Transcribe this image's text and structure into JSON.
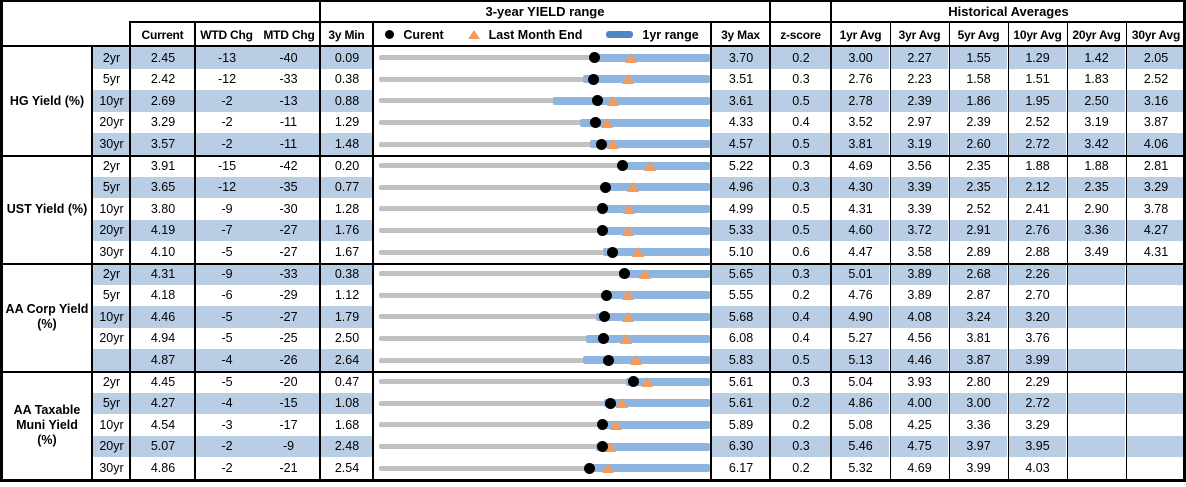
{
  "table": {
    "range_title": "3-year YIELD range",
    "historical_title": "Historical Averages",
    "columns": {
      "current": "Current",
      "wtd": "WTD Chg",
      "mtd": "MTD Chg",
      "min3y": "3y Min",
      "max3y": "3y Max",
      "zscore": "z-score",
      "averages": [
        "1yr Avg",
        "3yr Avg",
        "5yr Avg",
        "10yr Avg",
        "20yr Avg",
        "30yr Avg"
      ]
    },
    "legend": {
      "current_label": "Curent",
      "last_month_label": "Last Month End",
      "range_label": "1yr range"
    }
  },
  "colors": {
    "row_shade": "#B9CDE5",
    "bar_blue": "#8EB4E0",
    "legend_bar_blue": "#4E86C6",
    "track_gray": "#C1C1C1",
    "marker_orange": "#F49B5B",
    "marker_black": "#000000"
  },
  "chart_data": {
    "type": "table",
    "title": "3-year YIELD range with current, last-month-end and 1yr-range markers",
    "note": "Each row renders a bullet chart spanning 3y Min to 3y Max; dot = Current, triangle = last month end (Current - MTD Chg/100), blue bar = 1yr range ending at 3y Max; range_1yr_lo_frac is the estimated left edge of the 1yr range bar as a fraction of the 3y span.",
    "groups": [
      {
        "label": "HG Yield (%)",
        "rows": [
          {
            "tenor": "2yr",
            "current": 2.45,
            "wtd_chg": -13,
            "mtd_chg": -40,
            "min_3y": 0.09,
            "max_3y": 3.7,
            "z_score": 0.2,
            "averages": [
              3.0,
              2.27,
              1.55,
              1.29,
              1.42,
              2.05
            ],
            "range_1yr_lo_frac": 0.65
          },
          {
            "tenor": "5yr",
            "current": 2.42,
            "wtd_chg": -12,
            "mtd_chg": -33,
            "min_3y": 0.38,
            "max_3y": 3.51,
            "z_score": 0.3,
            "averages": [
              2.76,
              2.23,
              1.58,
              1.51,
              1.83,
              2.52
            ],
            "range_1yr_lo_frac": 0.62
          },
          {
            "tenor": "10yr",
            "current": 2.69,
            "wtd_chg": -2,
            "mtd_chg": -13,
            "min_3y": 0.88,
            "max_3y": 3.61,
            "z_score": 0.5,
            "averages": [
              2.78,
              2.39,
              1.86,
              1.95,
              2.5,
              3.16
            ],
            "range_1yr_lo_frac": 0.53
          },
          {
            "tenor": "20yr",
            "current": 3.29,
            "wtd_chg": -2,
            "mtd_chg": -11,
            "min_3y": 1.29,
            "max_3y": 4.33,
            "z_score": 0.4,
            "averages": [
              3.52,
              2.97,
              2.39,
              2.52,
              3.19,
              3.87
            ],
            "range_1yr_lo_frac": 0.61
          },
          {
            "tenor": "30yr",
            "current": 3.57,
            "wtd_chg": -2,
            "mtd_chg": -11,
            "min_3y": 1.48,
            "max_3y": 4.57,
            "z_score": 0.5,
            "averages": [
              3.81,
              3.19,
              2.6,
              2.72,
              3.42,
              4.06
            ],
            "range_1yr_lo_frac": 0.64
          }
        ]
      },
      {
        "label": "UST Yield (%)",
        "rows": [
          {
            "tenor": "2yr",
            "current": 3.91,
            "wtd_chg": -15,
            "mtd_chg": -42,
            "min_3y": 0.2,
            "max_3y": 5.22,
            "z_score": 0.3,
            "averages": [
              4.69,
              3.56,
              2.35,
              1.88,
              1.88,
              2.81
            ],
            "range_1yr_lo_frac": 0.73
          },
          {
            "tenor": "5yr",
            "current": 3.65,
            "wtd_chg": -12,
            "mtd_chg": -35,
            "min_3y": 0.77,
            "max_3y": 4.96,
            "z_score": 0.3,
            "averages": [
              4.3,
              3.39,
              2.35,
              2.12,
              2.35,
              3.29
            ],
            "range_1yr_lo_frac": 0.69
          },
          {
            "tenor": "10yr",
            "current": 3.8,
            "wtd_chg": -9,
            "mtd_chg": -30,
            "min_3y": 1.28,
            "max_3y": 4.99,
            "z_score": 0.5,
            "averages": [
              4.31,
              3.39,
              2.52,
              2.41,
              2.9,
              3.78
            ],
            "range_1yr_lo_frac": 0.69
          },
          {
            "tenor": "20yr",
            "current": 4.19,
            "wtd_chg": -7,
            "mtd_chg": -27,
            "min_3y": 1.76,
            "max_3y": 5.33,
            "z_score": 0.5,
            "averages": [
              4.6,
              3.72,
              2.91,
              2.76,
              3.36,
              4.27
            ],
            "range_1yr_lo_frac": 0.67
          },
          {
            "tenor": "30yr",
            "current": 4.1,
            "wtd_chg": -5,
            "mtd_chg": -27,
            "min_3y": 1.67,
            "max_3y": 5.1,
            "z_score": 0.6,
            "averages": [
              4.47,
              3.58,
              2.89,
              2.88,
              3.49,
              4.31
            ],
            "range_1yr_lo_frac": 0.68
          }
        ]
      },
      {
        "label": "AA Corp Yield (%)",
        "rows": [
          {
            "tenor": "2yr",
            "current": 4.31,
            "wtd_chg": -9,
            "mtd_chg": -33,
            "min_3y": 0.38,
            "max_3y": 5.65,
            "z_score": 0.3,
            "averages": [
              5.01,
              3.89,
              2.68,
              2.26,
              null,
              null
            ],
            "range_1yr_lo_frac": 0.73
          },
          {
            "tenor": "5yr",
            "current": 4.18,
            "wtd_chg": -6,
            "mtd_chg": -29,
            "min_3y": 1.12,
            "max_3y": 5.55,
            "z_score": 0.2,
            "averages": [
              4.76,
              3.89,
              2.87,
              2.7,
              null,
              null
            ],
            "range_1yr_lo_frac": 0.69
          },
          {
            "tenor": "10yr",
            "current": 4.46,
            "wtd_chg": -5,
            "mtd_chg": -27,
            "min_3y": 1.79,
            "max_3y": 5.68,
            "z_score": 0.4,
            "averages": [
              4.9,
              4.08,
              3.24,
              3.2,
              null,
              null
            ],
            "range_1yr_lo_frac": 0.66
          },
          {
            "tenor": "20yr",
            "current": 4.94,
            "wtd_chg": -5,
            "mtd_chg": -25,
            "min_3y": 2.5,
            "max_3y": 6.08,
            "z_score": 0.4,
            "averages": [
              5.27,
              4.56,
              3.81,
              3.76,
              null,
              null
            ],
            "range_1yr_lo_frac": 0.63
          },
          {
            "tenor": "",
            "current": 4.87,
            "wtd_chg": -4,
            "mtd_chg": -26,
            "min_3y": 2.64,
            "max_3y": 5.83,
            "z_score": 0.5,
            "averages": [
              5.13,
              4.46,
              3.87,
              3.99,
              null,
              null
            ],
            "range_1yr_lo_frac": 0.62
          }
        ]
      },
      {
        "label": "AA Taxable Muni Yield (%)",
        "rows": [
          {
            "tenor": "2yr",
            "current": 4.45,
            "wtd_chg": -5,
            "mtd_chg": -20,
            "min_3y": 0.47,
            "max_3y": 5.61,
            "z_score": 0.3,
            "averages": [
              5.04,
              3.93,
              2.8,
              2.29,
              null,
              null
            ],
            "range_1yr_lo_frac": 0.75
          },
          {
            "tenor": "5yr",
            "current": 4.27,
            "wtd_chg": -4,
            "mtd_chg": -15,
            "min_3y": 1.08,
            "max_3y": 5.61,
            "z_score": 0.2,
            "averages": [
              4.86,
              4.0,
              3.0,
              2.72,
              null,
              null
            ],
            "range_1yr_lo_frac": 0.685
          },
          {
            "tenor": "10yr",
            "current": 4.54,
            "wtd_chg": -3,
            "mtd_chg": -17,
            "min_3y": 1.68,
            "max_3y": 5.89,
            "z_score": 0.2,
            "averages": [
              5.08,
              4.25,
              3.36,
              3.29,
              null,
              null
            ],
            "range_1yr_lo_frac": 0.665
          },
          {
            "tenor": "20yr",
            "current": 5.07,
            "wtd_chg": -2,
            "mtd_chg": -9,
            "min_3y": 2.48,
            "max_3y": 6.3,
            "z_score": 0.3,
            "averages": [
              5.46,
              4.75,
              3.97,
              3.95,
              null,
              null
            ],
            "range_1yr_lo_frac": 0.66
          },
          {
            "tenor": "30yr",
            "current": 4.86,
            "wtd_chg": -2,
            "mtd_chg": -21,
            "min_3y": 2.54,
            "max_3y": 6.17,
            "z_score": 0.2,
            "averages": [
              5.32,
              4.69,
              3.99,
              4.03,
              null,
              null
            ],
            "range_1yr_lo_frac": 0.635
          }
        ]
      }
    ]
  }
}
